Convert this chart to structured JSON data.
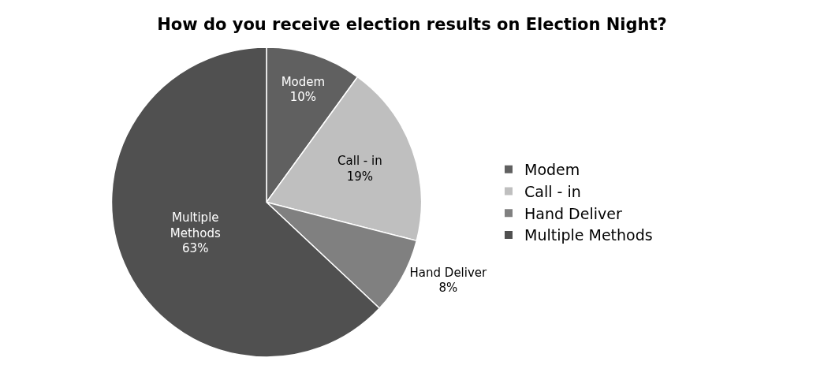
{
  "chart_data": {
    "type": "pie",
    "title": "How do you receive election results on Election Night?",
    "categories": [
      "Modem",
      "Call - in",
      "Hand Deliver",
      "Multiple Methods"
    ],
    "values": [
      10,
      19,
      8,
      63
    ],
    "value_labels": [
      "10%",
      "19%",
      "8%",
      "63%"
    ],
    "colors": [
      "#606060",
      "#bfbfbf",
      "#808080",
      "#505050"
    ],
    "legend": "right"
  }
}
